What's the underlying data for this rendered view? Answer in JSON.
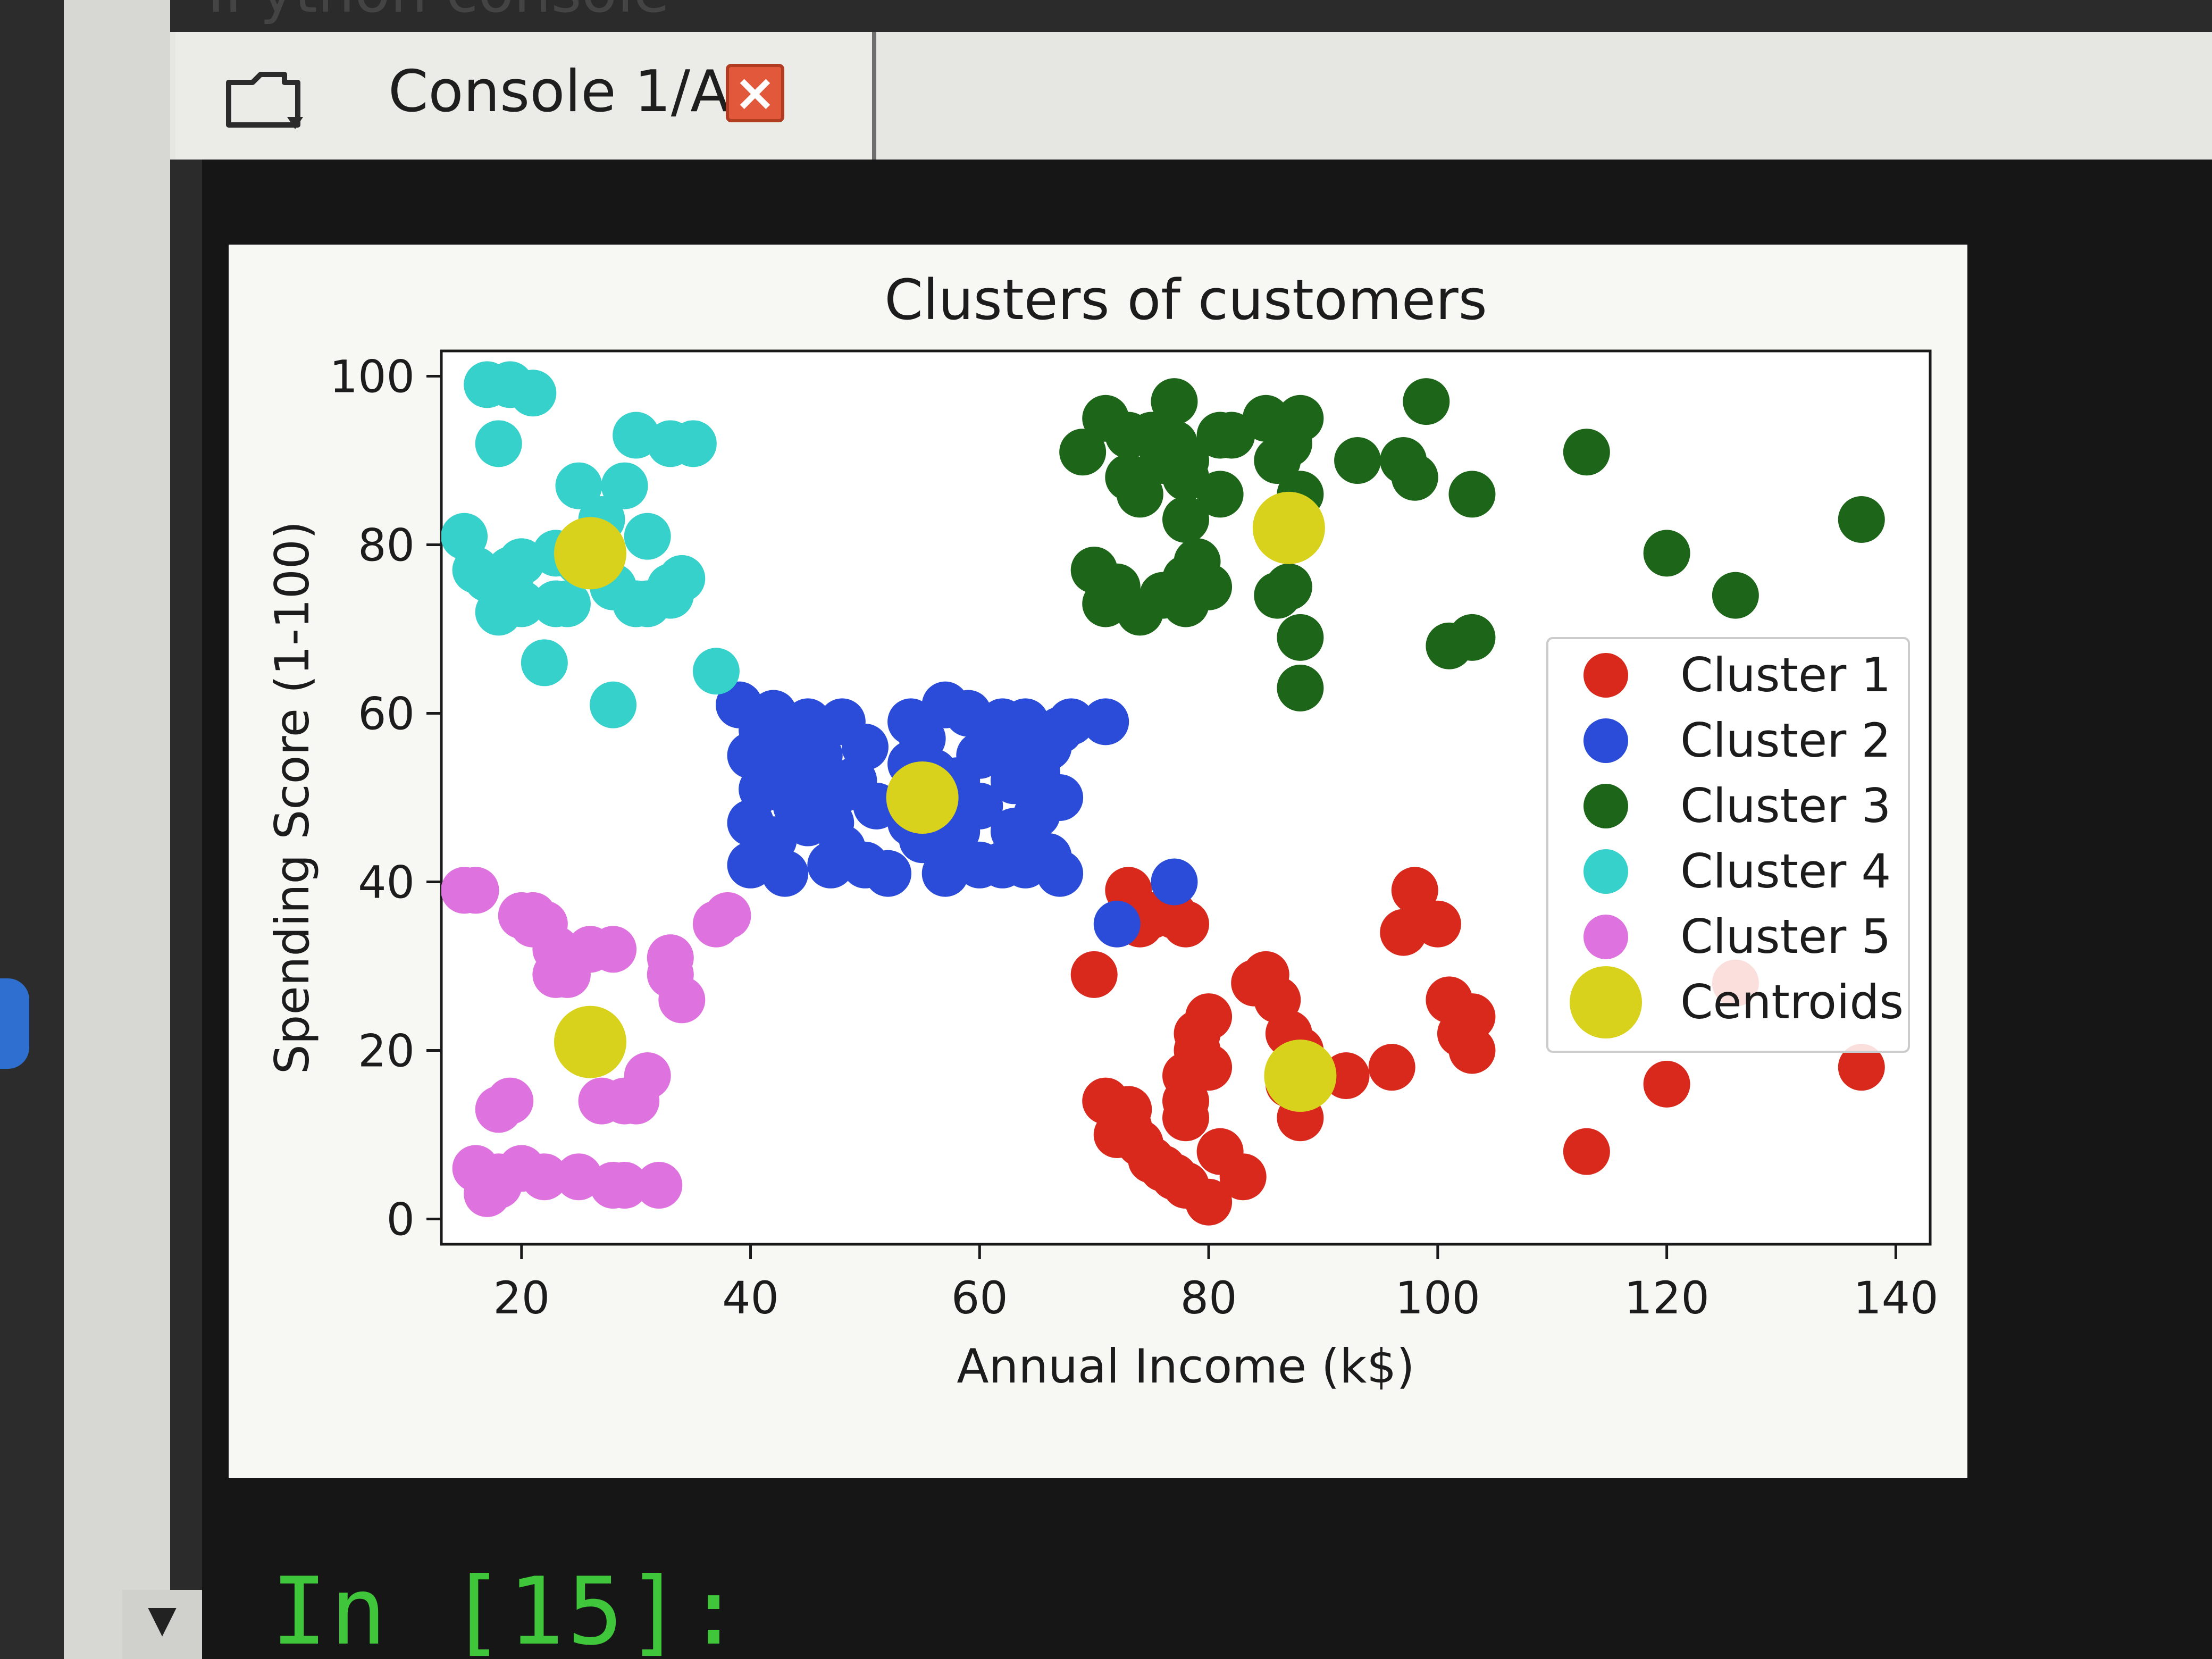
{
  "window": {
    "pane_title": "IPython console"
  },
  "tabs": [
    {
      "label": "Console 1/A",
      "close_icon": "close-icon"
    }
  ],
  "console": {
    "prompt": "In [15]:"
  },
  "icons": {
    "tab_folder": "folder-icon",
    "tab_close": "close-icon",
    "scroll": "chevron-down-icon"
  },
  "chart_data": {
    "type": "scatter",
    "title": "Clusters of customers",
    "xlabel": "Annual Income (k$)",
    "ylabel": "Spending Score (1-100)",
    "xlim": [
      13,
      143
    ],
    "ylim": [
      -3,
      103
    ],
    "xticks": [
      20,
      40,
      60,
      80,
      100,
      120,
      140
    ],
    "yticks": [
      0,
      20,
      40,
      60,
      80,
      100
    ],
    "grid": false,
    "legend_position": "right",
    "series": [
      {
        "name": "Cluster 1",
        "color": "#d9291c",
        "points": [
          [
            70,
            29
          ],
          [
            73,
            39
          ],
          [
            74,
            35
          ],
          [
            75,
            36
          ],
          [
            77,
            36
          ],
          [
            78,
            35
          ],
          [
            71,
            14
          ],
          [
            72,
            10
          ],
          [
            73,
            11
          ],
          [
            73,
            13
          ],
          [
            74,
            9
          ],
          [
            75,
            7
          ],
          [
            76,
            6
          ],
          [
            77,
            5
          ],
          [
            78,
            4
          ],
          [
            78,
            12
          ],
          [
            78,
            14
          ],
          [
            78,
            17
          ],
          [
            79,
            20
          ],
          [
            79,
            22
          ],
          [
            80,
            24
          ],
          [
            80,
            18
          ],
          [
            80,
            2
          ],
          [
            81,
            8
          ],
          [
            83,
            5
          ],
          [
            84,
            28
          ],
          [
            85,
            29
          ],
          [
            86,
            26
          ],
          [
            87,
            16
          ],
          [
            87,
            17
          ],
          [
            87,
            22
          ],
          [
            88,
            12
          ],
          [
            88,
            15
          ],
          [
            88,
            20
          ],
          [
            92,
            17
          ],
          [
            96,
            18
          ],
          [
            97,
            34
          ],
          [
            98,
            39
          ],
          [
            100,
            35
          ],
          [
            101,
            26
          ],
          [
            102,
            22
          ],
          [
            103,
            24
          ],
          [
            103,
            20
          ],
          [
            113,
            8
          ],
          [
            120,
            16
          ],
          [
            126,
            28
          ],
          [
            137,
            18
          ]
        ]
      },
      {
        "name": "Cluster 2",
        "color": "#2a4cd8",
        "points": [
          [
            39,
            61
          ],
          [
            40,
            55
          ],
          [
            40,
            47
          ],
          [
            40,
            42
          ],
          [
            41,
            58
          ],
          [
            41,
            51
          ],
          [
            42,
            60
          ],
          [
            42,
            52
          ],
          [
            42,
            45
          ],
          [
            43,
            54
          ],
          [
            43,
            41
          ],
          [
            44,
            49
          ],
          [
            44,
            56
          ],
          [
            45,
            47
          ],
          [
            45,
            59
          ],
          [
            46,
            52
          ],
          [
            46,
            55
          ],
          [
            47,
            42
          ],
          [
            47,
            47
          ],
          [
            48,
            51
          ],
          [
            48,
            59
          ],
          [
            48,
            44
          ],
          [
            49,
            52
          ],
          [
            50,
            42
          ],
          [
            50,
            56
          ],
          [
            51,
            49
          ],
          [
            52,
            41
          ],
          [
            54,
            47
          ],
          [
            54,
            54
          ],
          [
            54,
            59
          ],
          [
            55,
            57
          ],
          [
            55,
            45
          ],
          [
            56,
            49
          ],
          [
            56,
            53
          ],
          [
            57,
            41
          ],
          [
            57,
            61
          ],
          [
            58,
            46
          ],
          [
            58,
            52
          ],
          [
            59,
            60
          ],
          [
            60,
            42
          ],
          [
            60,
            49
          ],
          [
            60,
            55
          ],
          [
            61,
            57
          ],
          [
            62,
            42
          ],
          [
            62,
            59
          ],
          [
            63,
            46
          ],
          [
            63,
            52
          ],
          [
            63,
            55
          ],
          [
            64,
            42
          ],
          [
            64,
            59
          ],
          [
            65,
            48
          ],
          [
            65,
            53
          ],
          [
            66,
            43
          ],
          [
            66,
            56
          ],
          [
            67,
            41
          ],
          [
            67,
            50
          ],
          [
            67,
            58
          ],
          [
            68,
            59
          ],
          [
            71,
            59
          ],
          [
            72,
            35
          ],
          [
            77,
            40
          ]
        ]
      },
      {
        "name": "Cluster 3",
        "color": "#1d6619",
        "points": [
          [
            69,
            91
          ],
          [
            70,
            77
          ],
          [
            71,
            73
          ],
          [
            71,
            95
          ],
          [
            72,
            75
          ],
          [
            73,
            88
          ],
          [
            73,
            93
          ],
          [
            74,
            72
          ],
          [
            74,
            86
          ],
          [
            75,
            93
          ],
          [
            76,
            74
          ],
          [
            76,
            90
          ],
          [
            77,
            92
          ],
          [
            77,
            97
          ],
          [
            78,
            73
          ],
          [
            78,
            83
          ],
          [
            78,
            88
          ],
          [
            78,
            76
          ],
          [
            78,
            90
          ],
          [
            79,
            78
          ],
          [
            80,
            75
          ],
          [
            81,
            93
          ],
          [
            81,
            86
          ],
          [
            82,
            93
          ],
          [
            85,
            95
          ],
          [
            86,
            74
          ],
          [
            86,
            90
          ],
          [
            87,
            92
          ],
          [
            87,
            75
          ],
          [
            88,
            86
          ],
          [
            88,
            69
          ],
          [
            88,
            63
          ],
          [
            88,
            95
          ],
          [
            93,
            90
          ],
          [
            97,
            90
          ],
          [
            98,
            88
          ],
          [
            99,
            97
          ],
          [
            103,
            86
          ],
          [
            101,
            68
          ],
          [
            103,
            69
          ],
          [
            113,
            91
          ],
          [
            120,
            79
          ],
          [
            126,
            74
          ],
          [
            137,
            83
          ]
        ]
      },
      {
        "name": "Cluster 4",
        "color": "#37d1cc",
        "points": [
          [
            15,
            81
          ],
          [
            16,
            77
          ],
          [
            17,
            76
          ],
          [
            17,
            99
          ],
          [
            18,
            72
          ],
          [
            18,
            92
          ],
          [
            19,
            77
          ],
          [
            19,
            75
          ],
          [
            19,
            99
          ],
          [
            20,
            78
          ],
          [
            20,
            73
          ],
          [
            21,
            98
          ],
          [
            22,
            66
          ],
          [
            23,
            73
          ],
          [
            23,
            79
          ],
          [
            24,
            73
          ],
          [
            25,
            87
          ],
          [
            25,
            78
          ],
          [
            27,
            83
          ],
          [
            28,
            75
          ],
          [
            28,
            61
          ],
          [
            29,
            87
          ],
          [
            30,
            73
          ],
          [
            30,
            93
          ],
          [
            31,
            81
          ],
          [
            31,
            73
          ],
          [
            33,
            92
          ],
          [
            33,
            74
          ],
          [
            33,
            75
          ],
          [
            34,
            76
          ],
          [
            35,
            92
          ],
          [
            37,
            65
          ]
        ]
      },
      {
        "name": "Cluster 5",
        "color": "#de72de",
        "points": [
          [
            15,
            39
          ],
          [
            16,
            39
          ],
          [
            16,
            6
          ],
          [
            17,
            3
          ],
          [
            18,
            13
          ],
          [
            18,
            4
          ],
          [
            18,
            5
          ],
          [
            19,
            14
          ],
          [
            20,
            36
          ],
          [
            20,
            6
          ],
          [
            21,
            35
          ],
          [
            21,
            36
          ],
          [
            22,
            5
          ],
          [
            22,
            35
          ],
          [
            23,
            29
          ],
          [
            23,
            32
          ],
          [
            24,
            29
          ],
          [
            25,
            5
          ],
          [
            26,
            32
          ],
          [
            27,
            14
          ],
          [
            28,
            32
          ],
          [
            28,
            4
          ],
          [
            29,
            14
          ],
          [
            29,
            4
          ],
          [
            30,
            14
          ],
          [
            31,
            17
          ],
          [
            32,
            4
          ],
          [
            33,
            29
          ],
          [
            33,
            31
          ],
          [
            34,
            26
          ],
          [
            37,
            35
          ],
          [
            38,
            36
          ]
        ]
      },
      {
        "name": "Centroids",
        "color": "#d9d21d",
        "large": true,
        "points": [
          [
            26,
            79
          ],
          [
            55,
            50
          ],
          [
            87,
            82
          ],
          [
            26,
            21
          ],
          [
            88,
            17
          ]
        ]
      }
    ]
  }
}
